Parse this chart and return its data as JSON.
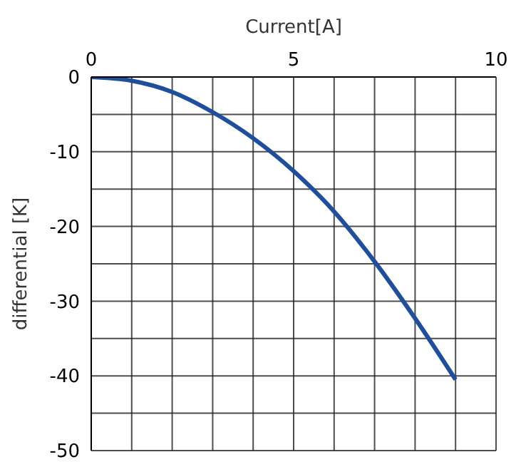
{
  "chart_data": {
    "type": "line",
    "xlabel": "Current[A]",
    "ylabel": "differential [K]",
    "x": [
      0,
      1,
      2,
      3,
      4,
      5,
      6,
      7,
      8,
      9
    ],
    "series": [
      {
        "color": "#1f4e9c",
        "values": [
          0,
          -0.5,
          -2,
          -4.7,
          -8.2,
          -12.6,
          -18,
          -24.7,
          -32.3,
          -40.5
        ]
      }
    ],
    "xlim": [
      0,
      10
    ],
    "xticks": [
      0,
      {
        "value": 1,
        "label": null
      },
      {
        "value": 2,
        "label": null
      },
      {
        "value": 3,
        "label": null
      },
      {
        "value": 4,
        "label": null
      },
      5,
      {
        "value": 6,
        "label": null
      },
      {
        "value": 7,
        "label": null
      },
      {
        "value": 8,
        "label": null
      },
      {
        "value": 9,
        "label": null
      },
      10
    ],
    "ylim": [
      -50,
      0
    ],
    "yticks": [
      -50,
      {
        "value": -45,
        "label": null
      },
      -40,
      {
        "value": -35,
        "label": null
      },
      -30,
      {
        "value": -25,
        "label": null
      },
      -20,
      {
        "value": -15,
        "label": null
      },
      -10,
      {
        "value": -5,
        "label": null
      },
      0
    ],
    "grid": true,
    "legend": false,
    "marker": "none",
    "line_style": "solid"
  }
}
